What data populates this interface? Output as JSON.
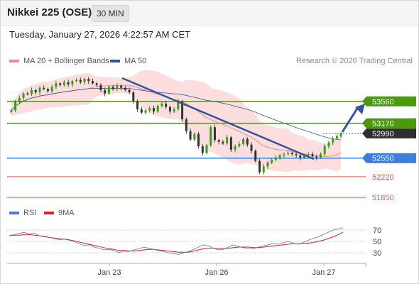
{
  "header": {
    "title": "Nikkei 225 (OSE)",
    "timeframe": "30 MIN"
  },
  "timestamp": "Tuesday, January 27, 2026 4:22:57 AM CET",
  "credit": "Research © 2026 Trading Central",
  "colors": {
    "resistance": "#4a9a0c",
    "support_pivot": "#3d7fd6",
    "support": "#e05555",
    "current_price": "#2e2e2e",
    "ma20": "#f08a8a",
    "ma50": "#34559a",
    "bollinger_fill": "#fcdede",
    "trend_line": "#34559a",
    "rsi": "#4a7bd6",
    "rsi_ma": "#e01e1e"
  },
  "chart_data": [
    {
      "type": "line",
      "title": "",
      "legend": [
        "MA 20 + Bollinger Bands",
        "MA 50"
      ],
      "ylim": [
        51700,
        54100
      ],
      "x_ticks": [
        "Jan 23",
        "Jan 26",
        "Jan 27"
      ],
      "levels": [
        {
          "value": 53560,
          "label": "53560",
          "kind": "resistance"
        },
        {
          "value": 53170,
          "label": "53170",
          "kind": "resistance"
        },
        {
          "value": 52990,
          "label": "52990",
          "kind": "current_price"
        },
        {
          "value": 52550,
          "label": "52550",
          "kind": "support_pivot"
        },
        {
          "value": 52220,
          "label": "52220",
          "kind": "support"
        },
        {
          "value": 51850,
          "label": "51850",
          "kind": "support"
        }
      ],
      "candles_close": [
        53400,
        53550,
        53620,
        53700,
        53690,
        53760,
        53720,
        53800,
        53780,
        53740,
        53820,
        53880,
        53850,
        53900,
        53860,
        53920,
        53940,
        53900,
        53960,
        53920,
        53880,
        53850,
        53760,
        53700,
        53820,
        53780,
        53840,
        53800,
        53760,
        53720,
        53560,
        53420,
        53360,
        53400,
        53440,
        53380,
        53480,
        53520,
        53460,
        53380,
        53420,
        53560,
        53240,
        53030,
        52880,
        52980,
        52760,
        52640,
        52780,
        53100,
        52870,
        52840,
        52810,
        52920,
        52700,
        52760,
        52800,
        52890,
        52790,
        52680,
        52500,
        52300,
        52400,
        52470,
        52520,
        52560,
        52600,
        52620,
        52640,
        52620,
        52600,
        52560,
        52600,
        52620,
        52580,
        52560,
        52620,
        52760,
        52830,
        52900,
        52940,
        52990
      ]
    },
    {
      "type": "line",
      "title": "",
      "legend": [
        "RSI",
        "9MA"
      ],
      "ylim": [
        15,
        85
      ],
      "y_ticks": [
        70,
        50,
        30
      ],
      "rsi": [
        60,
        62,
        64,
        66,
        63,
        65,
        60,
        58,
        57,
        55,
        53,
        54,
        52,
        50,
        46,
        43,
        44,
        40,
        38,
        35,
        36,
        34,
        30,
        33,
        32,
        35,
        37,
        40,
        38,
        36,
        34,
        32,
        30,
        29,
        27,
        30,
        32,
        36,
        40,
        44,
        42,
        38,
        35,
        36,
        40,
        44,
        41,
        39,
        38,
        37,
        40,
        42,
        44,
        46,
        45,
        48,
        50,
        47,
        45,
        48,
        52,
        55,
        58,
        62,
        66,
        70,
        72,
        74
      ],
      "rsi_ma": [
        60,
        61,
        61,
        62,
        62,
        61,
        60,
        59,
        57,
        56,
        55,
        54,
        53,
        51,
        49,
        47,
        45,
        43,
        41,
        39,
        37,
        36,
        34,
        34,
        33,
        33,
        34,
        35,
        36,
        36,
        35,
        34,
        33,
        32,
        31,
        31,
        31,
        33,
        35,
        37,
        38,
        38,
        37,
        37,
        38,
        39,
        40,
        40,
        40,
        39,
        39,
        40,
        41,
        42,
        43,
        44,
        45,
        46,
        46,
        46,
        47,
        48,
        50,
        52,
        55,
        58,
        62,
        66
      ]
    }
  ]
}
